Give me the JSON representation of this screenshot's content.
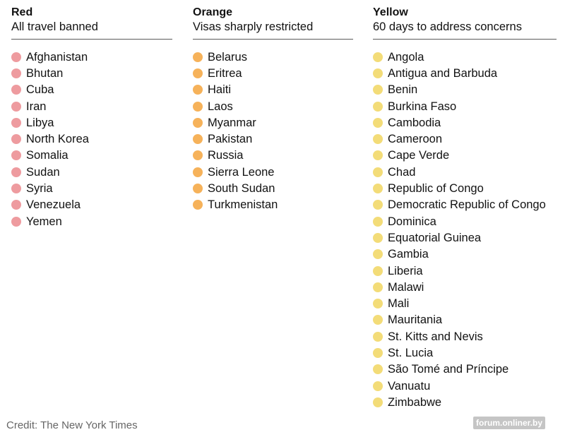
{
  "columns": {
    "red": {
      "title": "Red",
      "subtitle": "All travel banned",
      "dot_color": "#ee9b9f",
      "countries": [
        "Afghanistan",
        "Bhutan",
        "Cuba",
        "Iran",
        "Libya",
        "North Korea",
        "Somalia",
        "Sudan",
        "Syria",
        "Venezuela",
        "Yemen"
      ]
    },
    "orange": {
      "title": "Orange",
      "subtitle": "Visas sharply restricted",
      "dot_color": "#f6b25a",
      "countries": [
        "Belarus",
        "Eritrea",
        "Haiti",
        "Laos",
        "Myanmar",
        "Pakistan",
        "Russia",
        "Sierra Leone",
        "South Sudan",
        "Turkmenistan"
      ]
    },
    "yellow": {
      "title": "Yellow",
      "subtitle": "60 days to address concerns",
      "dot_color": "#f3dc78",
      "countries": [
        "Angola",
        "Antigua and Barbuda",
        "Benin",
        "Burkina Faso",
        "Cambodia",
        "Cameroon",
        "Cape Verde",
        "Chad",
        "Republic of Congo",
        "Democratic Republic of Congo",
        "Dominica",
        "Equatorial Guinea",
        "Gambia",
        "Liberia",
        "Malawi",
        "Mali",
        "Mauritania",
        "St. Kitts and Nevis",
        "St. Lucia",
        "São Tomé and Príncipe",
        "Vanuatu",
        "Zimbabwe"
      ]
    }
  },
  "credit": "Credit: The New York Times",
  "watermark": "forum.onliner.by"
}
